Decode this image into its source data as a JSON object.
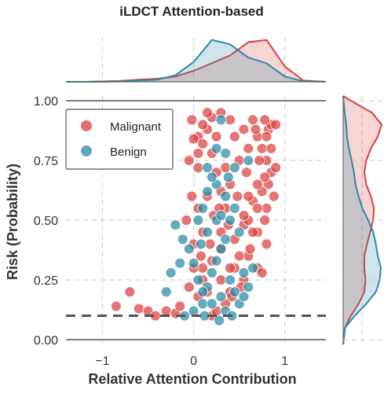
{
  "chart_data": {
    "type": "scatter",
    "title": "iLDCT Attention-based",
    "xlabel": "Relative Attention Contribution",
    "ylabel": "Risk (Probability)",
    "xlim": [
      -1.4,
      1.45
    ],
    "ylim": [
      -0.02,
      1.02
    ],
    "xticks": [
      -1,
      0,
      1
    ],
    "xtick_labels": [
      "−1",
      "0",
      "1"
    ],
    "yticks": [
      0.0,
      0.25,
      0.5,
      0.75,
      1.0
    ],
    "ytick_labels": [
      "0.00",
      "0.25",
      "0.50",
      "0.75",
      "1.00"
    ],
    "hlines": [
      0.0,
      1.0
    ],
    "threshold": 0.1,
    "grid": true,
    "legend_position": "top-left",
    "colors": {
      "Malignant": "#d9403f",
      "Benign": "#2a8aa6"
    },
    "series": [
      {
        "name": "Malignant",
        "points": [
          [
            -0.85,
            0.14
          ],
          [
            -0.7,
            0.2
          ],
          [
            -0.6,
            0.13
          ],
          [
            -0.5,
            0.12
          ],
          [
            -0.42,
            0.1
          ],
          [
            -0.3,
            0.12
          ],
          [
            -0.2,
            0.11
          ],
          [
            -0.15,
            0.14
          ],
          [
            -0.05,
            0.22
          ],
          [
            0.05,
            0.18
          ],
          [
            0.1,
            0.3
          ],
          [
            0.15,
            0.2
          ],
          [
            0.2,
            0.1
          ],
          [
            0.25,
            0.12
          ],
          [
            0.35,
            0.15
          ],
          [
            0.4,
            0.2
          ],
          [
            0.45,
            0.3
          ],
          [
            0.55,
            0.25
          ],
          [
            0.6,
            0.35
          ],
          [
            0.7,
            0.3
          ],
          [
            0.8,
            0.4
          ],
          [
            0.75,
            0.28
          ],
          [
            0.3,
            0.38
          ],
          [
            0.45,
            0.42
          ],
          [
            0.55,
            0.48
          ],
          [
            0.6,
            0.5
          ],
          [
            0.7,
            0.45
          ],
          [
            0.78,
            0.5
          ],
          [
            0.8,
            0.55
          ],
          [
            0.82,
            0.65
          ],
          [
            0.75,
            0.62
          ],
          [
            0.65,
            0.58
          ],
          [
            0.85,
            0.7
          ],
          [
            0.8,
            0.75
          ],
          [
            0.75,
            0.8
          ],
          [
            0.7,
            0.85
          ],
          [
            0.82,
            0.88
          ],
          [
            0.85,
            0.9
          ],
          [
            0.65,
            0.92
          ],
          [
            0.55,
            0.88
          ],
          [
            0.45,
            0.85
          ],
          [
            0.4,
            0.92
          ],
          [
            0.3,
            0.95
          ],
          [
            0.2,
            0.93
          ],
          [
            0.15,
            0.88
          ],
          [
            0.1,
            0.9
          ],
          [
            0.05,
            0.85
          ],
          [
            0.0,
            0.84
          ],
          [
            -0.02,
            0.92
          ],
          [
            0.1,
            0.82
          ],
          [
            0.2,
            0.78
          ],
          [
            0.25,
            0.7
          ],
          [
            0.3,
            0.62
          ],
          [
            0.35,
            0.55
          ],
          [
            0.3,
            0.45
          ],
          [
            0.22,
            0.52
          ],
          [
            0.15,
            0.6
          ],
          [
            0.05,
            0.72
          ],
          [
            -0.05,
            0.75
          ],
          [
            -0.02,
            0.6
          ],
          [
            0.05,
            0.55
          ],
          [
            0.1,
            0.45
          ],
          [
            0.0,
            0.4
          ],
          [
            0.85,
            0.8
          ],
          [
            0.9,
            0.72
          ],
          [
            0.88,
            0.6
          ],
          [
            0.78,
            0.68
          ],
          [
            0.72,
            0.75
          ],
          [
            0.6,
            0.8
          ],
          [
            0.7,
            0.65
          ],
          [
            0.5,
            0.75
          ],
          [
            0.6,
            0.6
          ],
          [
            0.55,
            0.52
          ],
          [
            0.4,
            0.65
          ],
          [
            0.35,
            0.72
          ],
          [
            0.25,
            0.85
          ],
          [
            0.15,
            0.95
          ],
          [
            0.05,
            0.78
          ],
          [
            0.7,
            0.55
          ],
          [
            0.65,
            0.45
          ],
          [
            0.5,
            0.35
          ],
          [
            0.4,
            0.3
          ],
          [
            0.3,
            0.25
          ],
          [
            0.2,
            0.33
          ],
          [
            0.1,
            0.25
          ],
          [
            0.0,
            0.3
          ],
          [
            0.8,
            0.85
          ],
          [
            0.62,
            0.38
          ],
          [
            0.52,
            0.22
          ],
          [
            0.42,
            0.18
          ],
          [
            0.9,
            0.9
          ],
          [
            0.78,
            0.92
          ],
          [
            0.68,
            0.88
          ],
          [
            0.58,
            0.7
          ],
          [
            0.48,
            0.6
          ],
          [
            0.38,
            0.48
          ],
          [
            0.28,
            0.55
          ],
          [
            0.18,
            0.4
          ],
          [
            0.08,
            0.35
          ],
          [
            -0.08,
            0.5
          ]
        ]
      },
      {
        "name": "Benign",
        "points": [
          [
            -0.1,
            0.1
          ],
          [
            0.0,
            0.12
          ],
          [
            0.1,
            0.15
          ],
          [
            0.15,
            0.22
          ],
          [
            0.2,
            0.28
          ],
          [
            0.25,
            0.33
          ],
          [
            0.3,
            0.38
          ],
          [
            0.35,
            0.42
          ],
          [
            0.4,
            0.25
          ],
          [
            0.45,
            0.2
          ],
          [
            0.5,
            0.15
          ],
          [
            0.55,
            0.18
          ],
          [
            0.35,
            0.12
          ],
          [
            0.3,
            0.18
          ],
          [
            0.2,
            0.15
          ],
          [
            0.1,
            0.2
          ],
          [
            0.05,
            0.25
          ],
          [
            0.0,
            0.32
          ],
          [
            -0.05,
            0.38
          ],
          [
            -0.12,
            0.42
          ],
          [
            -0.15,
            0.32
          ],
          [
            -0.25,
            0.28
          ],
          [
            0.15,
            0.45
          ],
          [
            0.25,
            0.5
          ],
          [
            0.35,
            0.6
          ],
          [
            0.45,
            0.55
          ],
          [
            0.5,
            0.45
          ],
          [
            0.4,
            0.5
          ],
          [
            0.3,
            0.52
          ],
          [
            0.1,
            0.55
          ],
          [
            0.05,
            0.5
          ],
          [
            0.15,
            0.62
          ],
          [
            0.25,
            0.65
          ],
          [
            0.38,
            0.68
          ],
          [
            0.45,
            0.72
          ],
          [
            0.35,
            0.78
          ],
          [
            0.25,
            0.8
          ],
          [
            0.15,
            0.72
          ],
          [
            0.3,
            0.92
          ],
          [
            -0.2,
            0.48
          ],
          [
            -0.3,
            0.2
          ],
          [
            0.6,
            0.22
          ],
          [
            0.65,
            0.3
          ],
          [
            0.55,
            0.28
          ],
          [
            0.12,
            0.1
          ],
          [
            0.28,
            0.08
          ],
          [
            0.42,
            0.1
          ],
          [
            0.6,
            0.75
          ],
          [
            0.2,
            0.68
          ],
          [
            0.08,
            0.4
          ]
        ]
      }
    ],
    "x_density": {
      "x": [
        -1.4,
        -1.2,
        -1.0,
        -0.8,
        -0.6,
        -0.4,
        -0.2,
        0.0,
        0.2,
        0.4,
        0.6,
        0.8,
        1.0,
        1.2,
        1.45
      ],
      "Malignant": [
        0.0,
        0.0,
        0.01,
        0.02,
        0.05,
        0.07,
        0.12,
        0.25,
        0.42,
        0.6,
        0.9,
        0.95,
        0.35,
        0.03,
        0.0
      ],
      "Benign": [
        0.0,
        0.0,
        0.0,
        0.01,
        0.03,
        0.05,
        0.15,
        0.45,
        0.95,
        0.85,
        0.55,
        0.42,
        0.12,
        0.01,
        0.0
      ]
    },
    "y_density": {
      "y": [
        -0.02,
        0.05,
        0.1,
        0.15,
        0.2,
        0.25,
        0.3,
        0.35,
        0.4,
        0.45,
        0.5,
        0.55,
        0.6,
        0.65,
        0.7,
        0.75,
        0.8,
        0.85,
        0.9,
        0.95,
        1.0,
        1.02
      ],
      "Malignant": [
        0.0,
        0.05,
        0.2,
        0.4,
        0.55,
        0.58,
        0.55,
        0.55,
        0.62,
        0.7,
        0.78,
        0.8,
        0.72,
        0.6,
        0.55,
        0.6,
        0.72,
        0.9,
        1.0,
        0.75,
        0.2,
        0.0
      ],
      "Benign": [
        0.0,
        0.05,
        0.3,
        0.6,
        0.85,
        0.95,
        0.98,
        0.9,
        0.85,
        0.78,
        0.65,
        0.5,
        0.4,
        0.32,
        0.28,
        0.22,
        0.15,
        0.1,
        0.08,
        0.04,
        0.01,
        0.0
      ]
    }
  }
}
